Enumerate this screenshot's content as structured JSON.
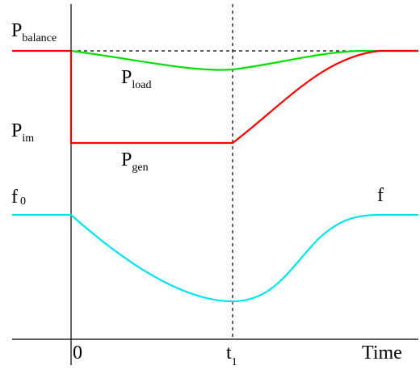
{
  "labels": {
    "p_balance": {
      "main": "P",
      "sub": "balance"
    },
    "p_load": {
      "main": "P",
      "sub": "load"
    },
    "p_im": {
      "main": "P",
      "sub": "im"
    },
    "p_gen": {
      "main": "P",
      "sub": "gen"
    },
    "f0": {
      "main": "f",
      "sub": "0"
    },
    "f": "f",
    "tick_zero": "0",
    "t1": {
      "main": "t",
      "sub": "1"
    },
    "time": "Time"
  },
  "colors": {
    "axis": "#000000",
    "p_gen_curve": "#ff0000",
    "p_load_curve": "#00e000",
    "frequency_curve": "#00e5ee",
    "reference_dashed": "#000000"
  }
}
